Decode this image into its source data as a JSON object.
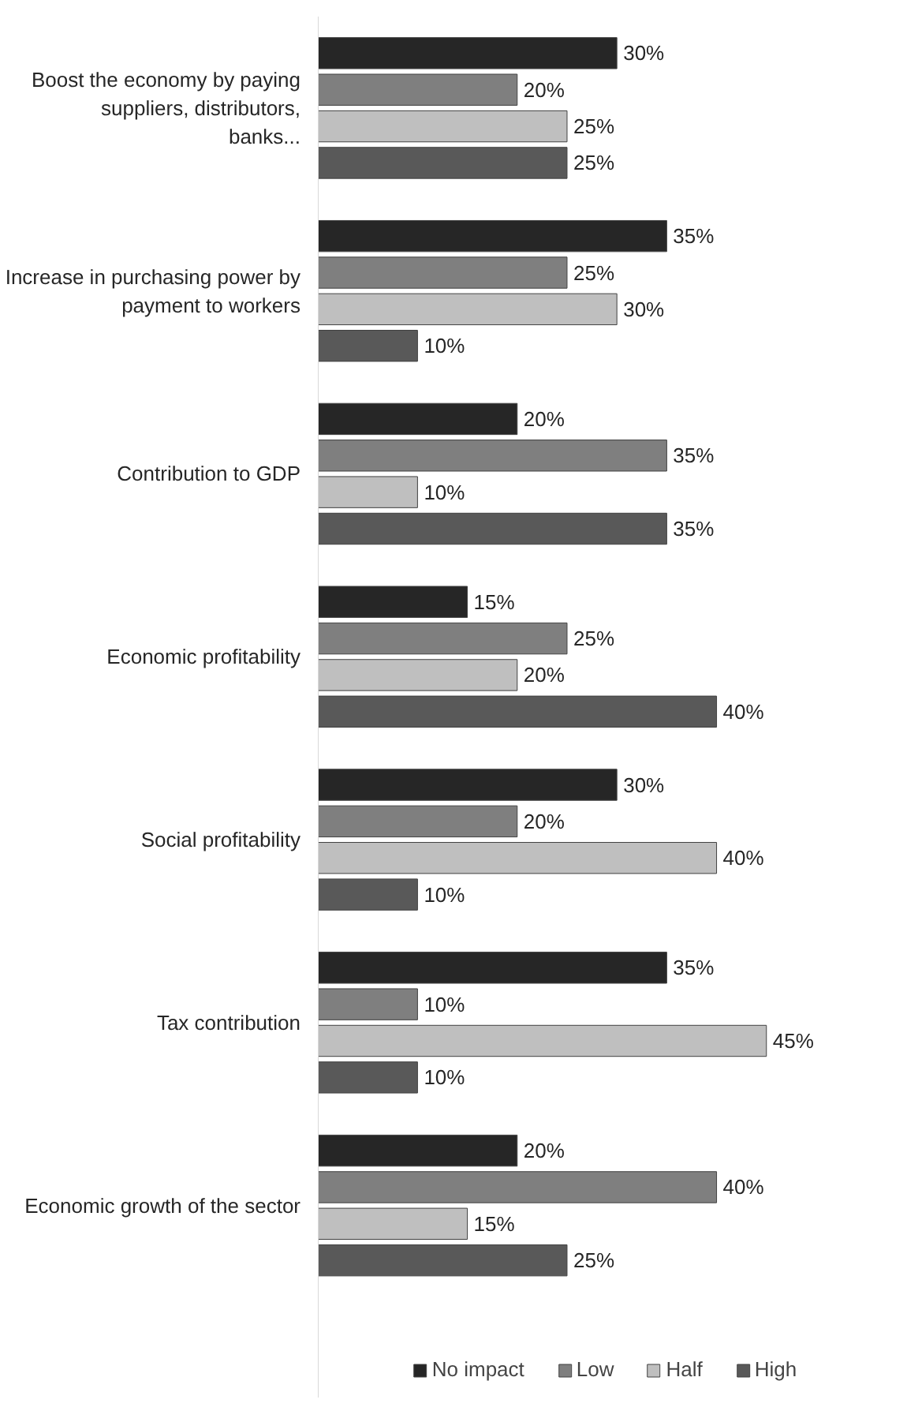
{
  "chart_data": {
    "type": "bar",
    "orientation": "horizontal",
    "categories": [
      "Boost the economy by paying suppliers, distributors, banks...",
      "Increase in purchasing power by payment to workers",
      "Contribution to GDP",
      "Economic profitability",
      "Social profitability",
      "Tax contribution",
      "Economic growth of the sector"
    ],
    "series": [
      {
        "name": "No impact",
        "color": "#262626",
        "values": [
          30,
          35,
          20,
          15,
          30,
          35,
          20
        ],
        "value_labels": [
          "30%",
          "35%",
          "20%",
          "15%",
          "30%",
          "35%",
          "20%"
        ]
      },
      {
        "name": "Low",
        "color": "#7f7f7f",
        "values": [
          20,
          25,
          35,
          25,
          20,
          10,
          40
        ],
        "value_labels": [
          "20%",
          "25%",
          "35%",
          "25%",
          "20%",
          "10%",
          "40%"
        ]
      },
      {
        "name": "Half",
        "color": "#bfbfbf",
        "values": [
          25,
          30,
          10,
          20,
          40,
          45,
          15
        ],
        "value_labels": [
          "25%",
          "30%",
          "10%",
          "20%",
          "40%",
          "45%",
          "15%"
        ]
      },
      {
        "name": "High",
        "color": "#595959",
        "values": [
          25,
          10,
          35,
          40,
          10,
          10,
          25
        ],
        "value_labels": [
          "25%",
          "10%",
          "35%",
          "40%",
          "10%",
          "10%",
          "25%"
        ]
      }
    ],
    "legend": "bottom",
    "tick_labels": "y"
  }
}
